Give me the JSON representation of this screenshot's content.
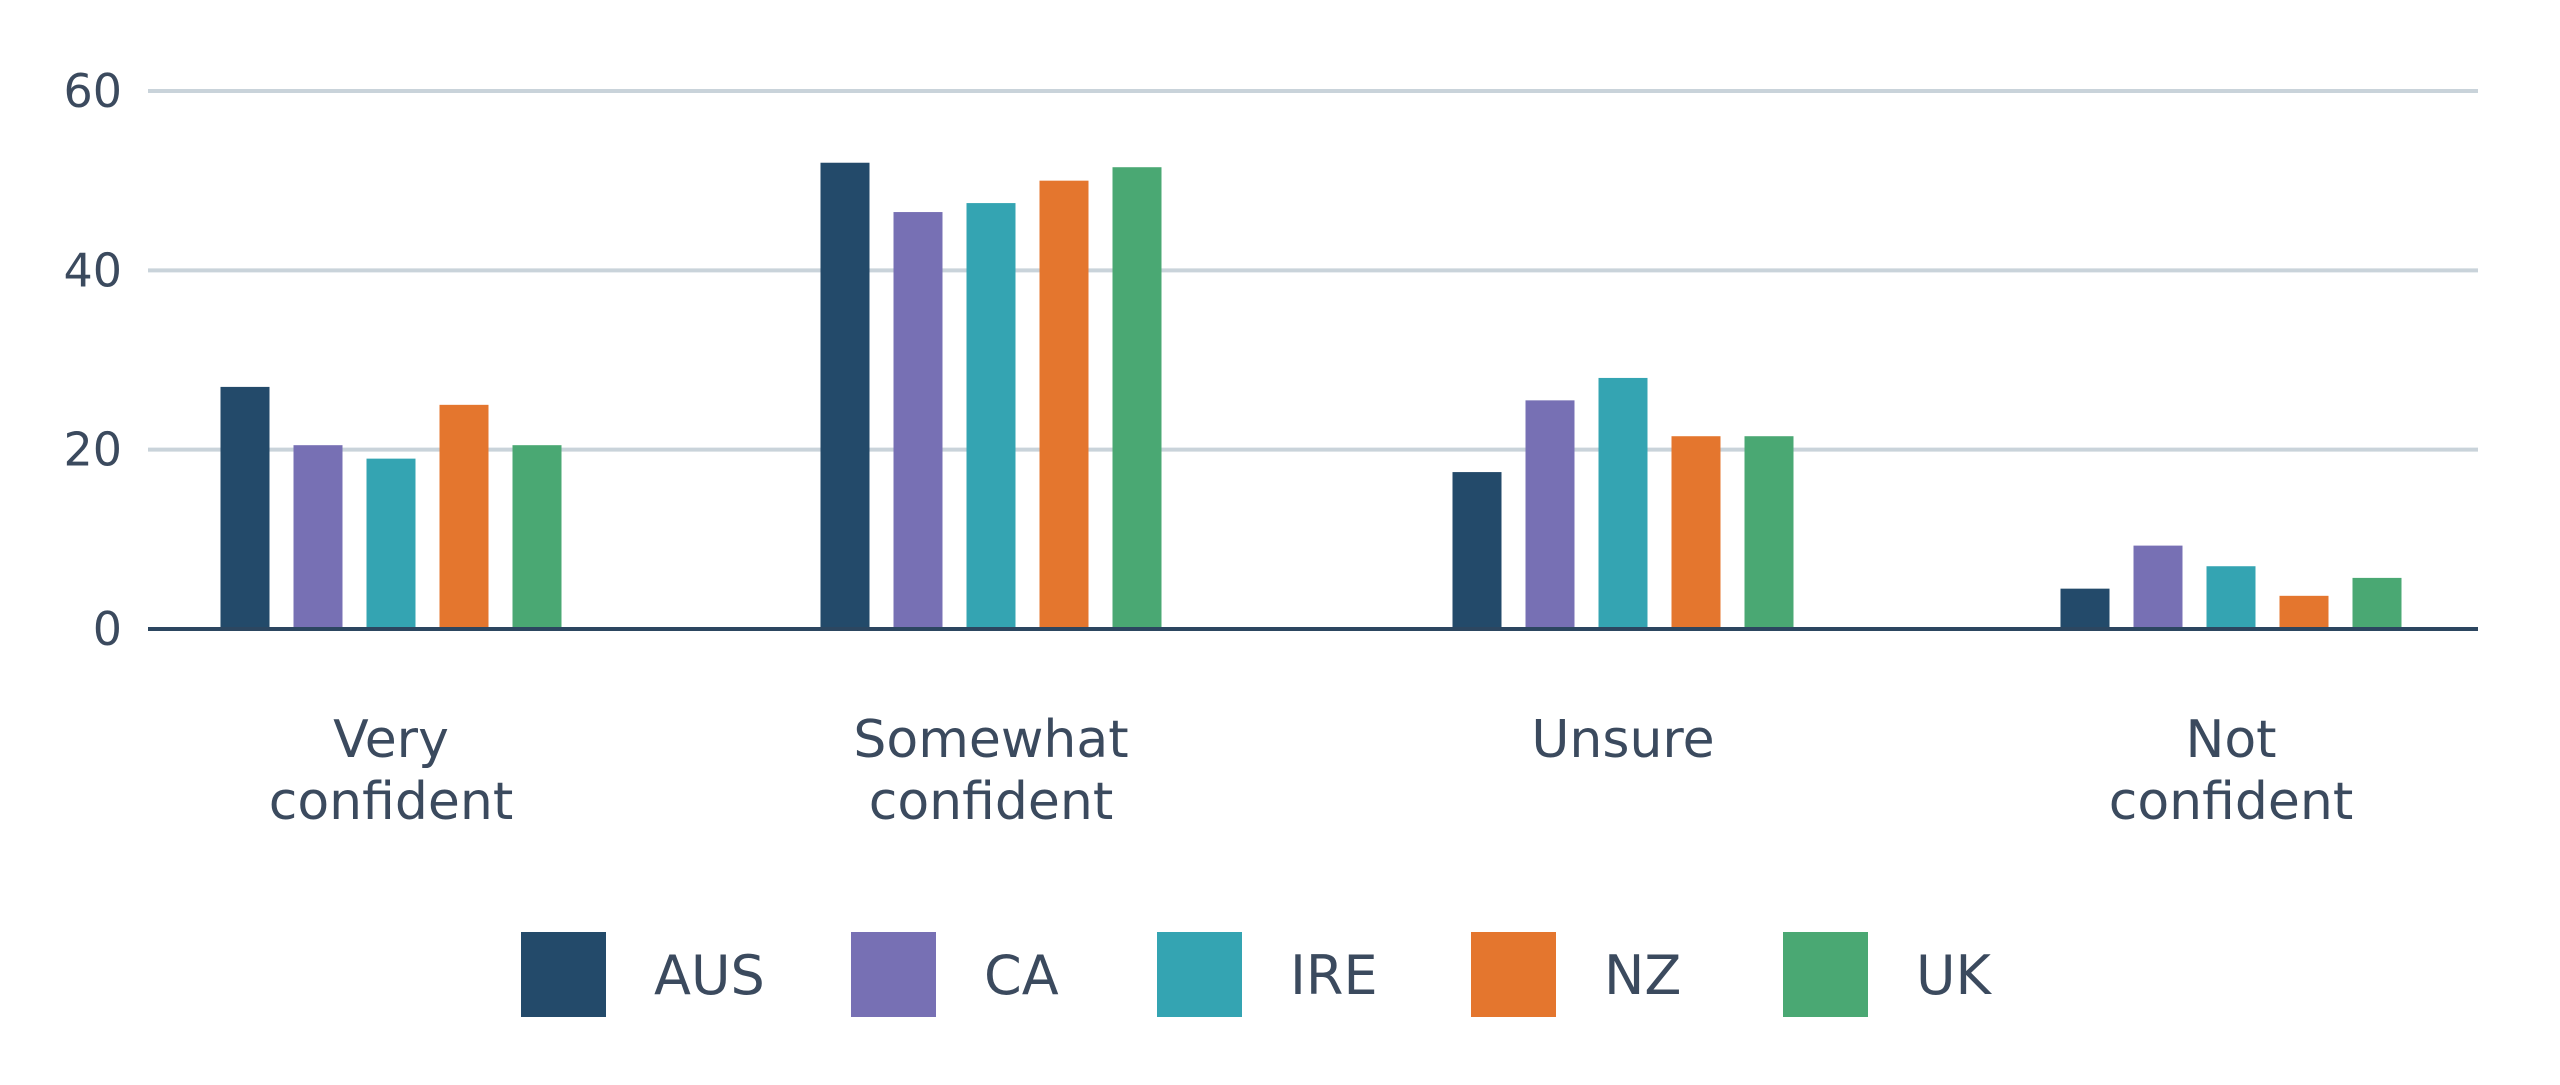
{
  "chart_data": {
    "type": "bar",
    "title": "",
    "xlabel": "",
    "ylabel": "",
    "ylim": [
      0,
      60
    ],
    "yticks": [
      "0",
      "20",
      "40",
      "60"
    ],
    "grid": true,
    "legend_position": "bottom",
    "categories": [
      [
        "Very",
        "confident"
      ],
      [
        "Somewhat",
        "confident"
      ],
      [
        "Unsure"
      ],
      [
        "Not",
        "confident"
      ]
    ],
    "series": [
      {
        "name": "AUS",
        "color": "#234a6a",
        "values": [
          27,
          52,
          17.5,
          4.5
        ]
      },
      {
        "name": "CA",
        "color": "#7770b4",
        "values": [
          20.5,
          46.5,
          25.5,
          9.3
        ]
      },
      {
        "name": "IRE",
        "color": "#34a4b2",
        "values": [
          19,
          47.5,
          28,
          7
        ]
      },
      {
        "name": "NZ",
        "color": "#e4762e",
        "values": [
          25,
          50,
          21.5,
          3.7
        ]
      },
      {
        "name": "UK",
        "color": "#4aa873",
        "values": [
          20.5,
          51.5,
          21.5,
          5.7
        ]
      }
    ],
    "colors": {
      "grid": "#c9d3da",
      "axis": "#2c4660",
      "text": "#3b4a5e"
    }
  }
}
